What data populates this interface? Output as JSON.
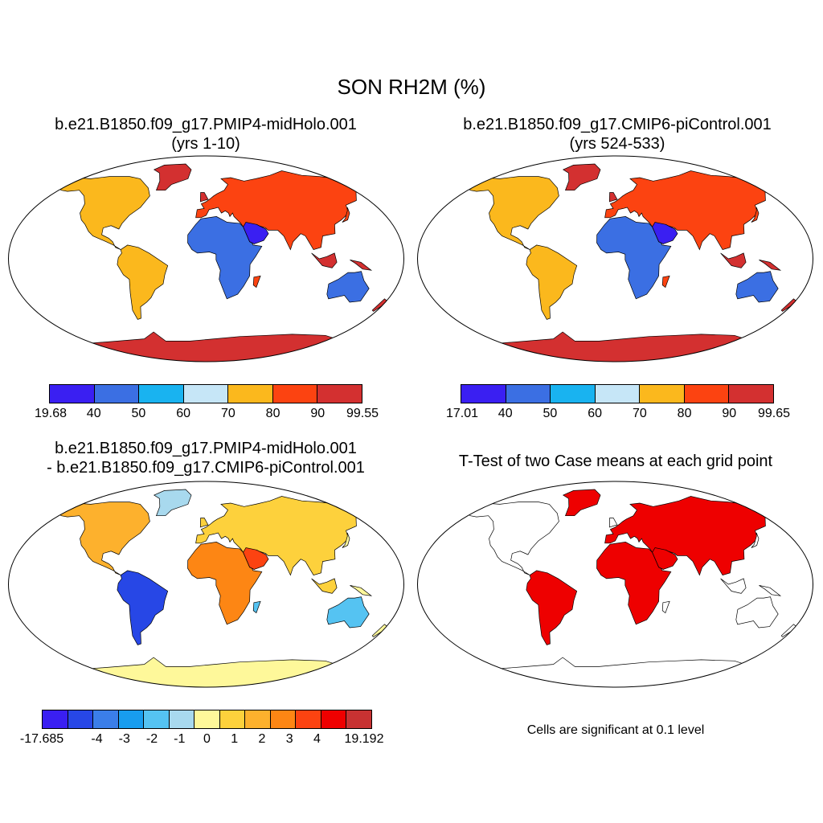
{
  "title": "SON RH2M (%)",
  "colors": {
    "rh_scale": [
      "#3a1ff2",
      "#3b6fe3",
      "#19b3f0",
      "#c6e6f7",
      "#fbb81d",
      "#fc4311",
      "#d33030"
    ],
    "diff_scale": [
      "#3a1ff2",
      "#2747e6",
      "#3b7ee9",
      "#189dee",
      "#55c3f2",
      "#a8d9ee",
      "#fef89a",
      "#fdd13c",
      "#fdb12d",
      "#fd8614",
      "#fc4311",
      "#ef0000",
      "#c83232"
    ],
    "significant": "#ee0000",
    "land_outline": "#000000"
  },
  "panels": [
    {
      "title_line1": "b.e21.B1850.f09_g17.PMIP4-midHolo.001",
      "title_line2": "(yrs 1-10)",
      "colorbar_labels": [
        "19.68",
        "40",
        "50",
        "60",
        "70",
        "80",
        "90",
        "99.55"
      ]
    },
    {
      "title_line1": "b.e21.B1850.f09_g17.CMIP6-piControl.001",
      "title_line2": "(yrs 524-533)",
      "colorbar_labels": [
        "17.01",
        "40",
        "50",
        "60",
        "70",
        "80",
        "90",
        "99.65"
      ]
    },
    {
      "title_line1": "b.e21.B1850.f09_g17.PMIP4-midHolo.001",
      "title_line2": "- b.e21.B1850.f09_g17.CMIP6-piControl.001",
      "colorbar_labels": [
        "-17.685",
        "-4",
        "-3",
        "-2",
        "-1",
        "0",
        "1",
        "2",
        "3",
        "4",
        "19.192"
      ]
    },
    {
      "title_line1": "T-Test of two Case means at each grid point",
      "footnote": "Cells are significant at 0.1 level"
    }
  ]
}
